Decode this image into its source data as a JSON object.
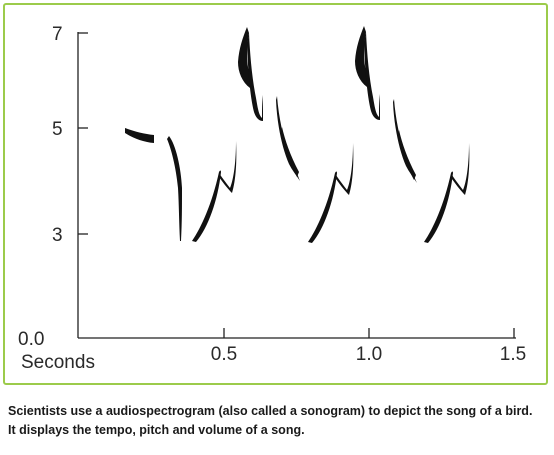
{
  "figure": {
    "y_axis": {
      "ticks": [
        "0.0",
        "3",
        "5",
        "7"
      ]
    },
    "x_axis": {
      "label": "Seconds",
      "ticks": [
        "0.5",
        "1.0",
        "1.5"
      ]
    },
    "panel_border_color": "#9ccb4b",
    "ink_color": "#111111"
  },
  "caption": {
    "line1": "Scientists use a audiospectrogram (also called a sonogram) to depict the song of a bird.",
    "line2": "It displays the tempo, pitch and volume of a song."
  }
}
